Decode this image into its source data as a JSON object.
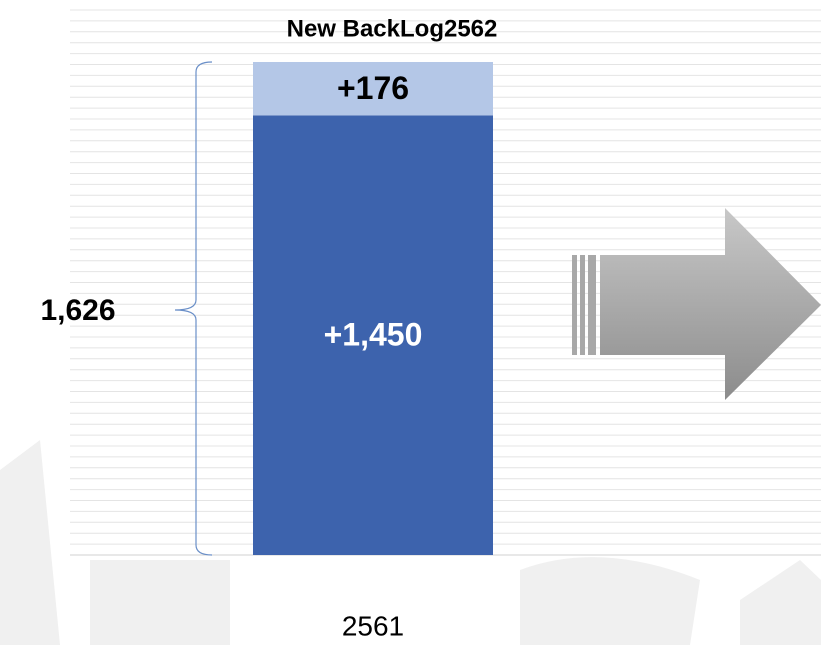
{
  "chart_data": {
    "type": "stacked_bar",
    "title": "New BackLog2562",
    "categories": [
      "2561"
    ],
    "series": [
      {
        "color": "#3d63ad",
        "label_color": "#ffffff",
        "values": [
          1450
        ],
        "value_labels": [
          "+1,450"
        ]
      },
      {
        "color": "#b4c7e7",
        "label_color": "#000000",
        "values": [
          176
        ],
        "value_labels": [
          "+176"
        ]
      }
    ],
    "total": {
      "value": 1626,
      "label": "1,626"
    }
  }
}
